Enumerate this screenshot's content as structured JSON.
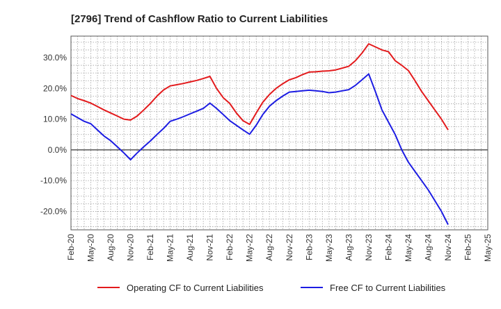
{
  "chart_data": {
    "type": "line",
    "title": "[2796]  Trend of Cashflow Ratio to Current Liabilities",
    "xlabel": "",
    "ylabel": "",
    "categories": [
      "Feb-20",
      "May-20",
      "Aug-20",
      "Nov-20",
      "Feb-21",
      "May-21",
      "Aug-21",
      "Nov-21",
      "Feb-22",
      "May-22",
      "Aug-22",
      "Nov-22",
      "Feb-23",
      "May-23",
      "Aug-23",
      "Nov-23",
      "Feb-24",
      "May-24",
      "Aug-24",
      "Nov-24",
      "Feb-25",
      "May-25"
    ],
    "y_ticks": [
      "-20.0%",
      "-10.0%",
      "0.0%",
      "10.0%",
      "20.0%",
      "30.0%"
    ],
    "y_tick_values": [
      -20,
      -10,
      0,
      10,
      20,
      30
    ],
    "ylim": [
      -26,
      37
    ],
    "grid": true,
    "legend_position": "bottom",
    "series": [
      {
        "name": "Operating CF to Current Liabilities",
        "color": "#e31a1c",
        "x": [
          "Feb-20",
          "Mar-20",
          "Apr-20",
          "May-20",
          "Jun-20",
          "Jul-20",
          "Aug-20",
          "Sep-20",
          "Oct-20",
          "Nov-20",
          "Dec-20",
          "Jan-21",
          "Feb-21",
          "Mar-21",
          "Apr-21",
          "May-21",
          "Jun-21",
          "Jul-21",
          "Aug-21",
          "Sep-21",
          "Oct-21",
          "Nov-21",
          "Dec-21",
          "Jan-22",
          "Feb-22",
          "Mar-22",
          "Apr-22",
          "May-22",
          "Jun-22",
          "Jul-22",
          "Aug-22",
          "Sep-22",
          "Oct-22",
          "Nov-22",
          "Dec-22",
          "Jan-23",
          "Feb-23",
          "Mar-23",
          "Apr-23",
          "May-23",
          "Jun-23",
          "Jul-23",
          "Aug-23",
          "Sep-23",
          "Oct-23",
          "Nov-23",
          "Dec-23",
          "Jan-24",
          "Feb-24",
          "Mar-24",
          "Apr-24",
          "May-24",
          "Jun-24",
          "Jul-24",
          "Aug-24",
          "Sep-24",
          "Oct-24",
          "Nov-24"
        ],
        "values": [
          17.7,
          16.7,
          16.0,
          15.2,
          14.1,
          13.0,
          12.0,
          11.0,
          10.0,
          9.7,
          11.0,
          13.0,
          15.1,
          17.5,
          19.5,
          20.8,
          21.2,
          21.6,
          22.1,
          22.6,
          23.2,
          23.9,
          20.0,
          17.0,
          15.1,
          12.0,
          9.5,
          8.3,
          12.0,
          15.5,
          18.0,
          20.0,
          21.5,
          22.8,
          23.5,
          24.5,
          25.3,
          25.4,
          25.6,
          25.7,
          26.0,
          26.6,
          27.2,
          29.0,
          31.5,
          34.5,
          33.5,
          32.5,
          31.9,
          29.0,
          27.5,
          25.8,
          22.5,
          19.0,
          16.0,
          13.0,
          10.0,
          6.5
        ]
      },
      {
        "name": "Free CF to Current Liabilities",
        "color": "#1c1ce3",
        "x": [
          "Feb-20",
          "Mar-20",
          "Apr-20",
          "May-20",
          "Jun-20",
          "Jul-20",
          "Aug-20",
          "Sep-20",
          "Oct-20",
          "Nov-20",
          "Dec-20",
          "Jan-21",
          "Feb-21",
          "Mar-21",
          "Apr-21",
          "May-21",
          "Jun-21",
          "Jul-21",
          "Aug-21",
          "Sep-21",
          "Oct-21",
          "Nov-21",
          "Dec-21",
          "Jan-22",
          "Feb-22",
          "Mar-22",
          "Apr-22",
          "May-22",
          "Jun-22",
          "Jul-22",
          "Aug-22",
          "Sep-22",
          "Oct-22",
          "Nov-22",
          "Dec-22",
          "Jan-23",
          "Feb-23",
          "Mar-23",
          "Apr-23",
          "May-23",
          "Jun-23",
          "Jul-23",
          "Aug-23",
          "Sep-23",
          "Oct-23",
          "Nov-23",
          "Dec-23",
          "Jan-24",
          "Feb-24",
          "Mar-24",
          "Apr-24",
          "May-24",
          "Jun-24",
          "Jul-24",
          "Aug-24",
          "Sep-24",
          "Oct-24",
          "Nov-24"
        ],
        "values": [
          11.7,
          10.5,
          9.3,
          8.5,
          6.5,
          4.5,
          3.0,
          1.0,
          -1.0,
          -3.2,
          -1.0,
          1.0,
          2.9,
          5.0,
          7.0,
          9.3,
          10.0,
          10.8,
          11.7,
          12.6,
          13.5,
          15.2,
          13.5,
          11.5,
          9.5,
          8.0,
          6.5,
          5.1,
          8.0,
          11.5,
          14.2,
          16.0,
          17.5,
          18.8,
          19.0,
          19.2,
          19.4,
          19.2,
          19.0,
          18.6,
          18.8,
          19.2,
          19.6,
          21.0,
          22.8,
          24.7,
          19.0,
          13.0,
          9.0,
          5.0,
          0.0,
          -4.0,
          -7.0,
          -10.0,
          -13.0,
          -16.5,
          -20.0,
          -24.3
        ]
      }
    ]
  }
}
